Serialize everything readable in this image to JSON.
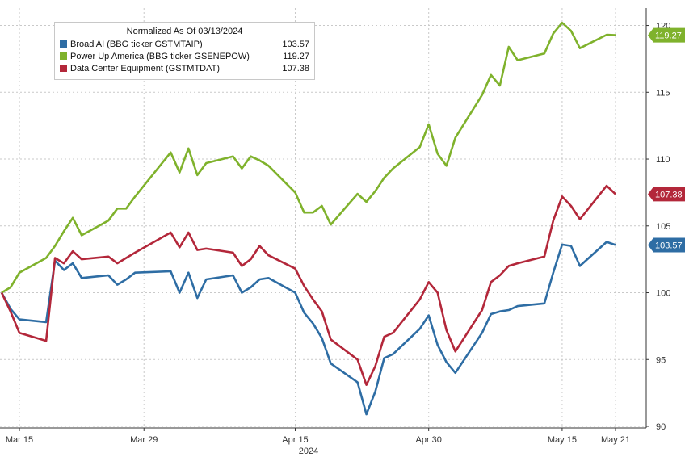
{
  "chart_data": {
    "type": "line",
    "legend_title": "Normalized As Of 03/13/2024",
    "x_ticks": [
      "Mar 15",
      "Mar 29",
      "Apr 15",
      "Apr 30",
      "May 15",
      "May 21"
    ],
    "x_year_label": "2024",
    "y_ticks": [
      "90",
      "95",
      "100",
      "105",
      "110",
      "115",
      "120"
    ],
    "ylim": [
      90,
      121
    ],
    "grid": true,
    "legend_position": "top-left",
    "y_axis_position": "right",
    "series": [
      {
        "name": "Broad AI (BBG ticker GSTMTAIP)",
        "value_label": "103.57",
        "tag": "103.57",
        "color": "#2e6da4",
        "x": [
          "2024-03-13",
          "2024-03-14",
          "2024-03-15",
          "2024-03-18",
          "2024-03-19",
          "2024-03-20",
          "2024-03-21",
          "2024-03-22",
          "2024-03-25",
          "2024-03-26",
          "2024-03-27",
          "2024-03-28",
          "2024-04-01",
          "2024-04-02",
          "2024-04-03",
          "2024-04-04",
          "2024-04-05",
          "2024-04-08",
          "2024-04-09",
          "2024-04-10",
          "2024-04-11",
          "2024-04-12",
          "2024-04-15",
          "2024-04-16",
          "2024-04-17",
          "2024-04-18",
          "2024-04-19",
          "2024-04-22",
          "2024-04-23",
          "2024-04-24",
          "2024-04-25",
          "2024-04-26",
          "2024-04-29",
          "2024-04-30",
          "2024-05-01",
          "2024-05-02",
          "2024-05-03",
          "2024-05-06",
          "2024-05-07",
          "2024-05-08",
          "2024-05-09",
          "2024-05-10",
          "2024-05-13",
          "2024-05-14",
          "2024-05-15",
          "2024-05-16",
          "2024-05-17",
          "2024-05-20",
          "2024-05-21"
        ],
        "y": [
          100.0,
          98.8,
          98.0,
          97.8,
          102.4,
          101.7,
          102.2,
          101.1,
          101.3,
          100.6,
          101.0,
          101.5,
          101.6,
          100.0,
          101.5,
          99.6,
          101.0,
          101.3,
          100.0,
          100.4,
          101.0,
          101.1,
          100.0,
          98.5,
          97.7,
          96.6,
          94.7,
          93.3,
          90.9,
          92.6,
          95.1,
          95.4,
          97.3,
          98.3,
          96.1,
          94.8,
          94.0,
          97.0,
          98.4,
          98.6,
          98.7,
          99.0,
          99.2,
          101.5,
          103.6,
          103.5,
          102.0,
          103.8,
          103.57
        ]
      },
      {
        "name": "Power Up America (BBG ticker GSENEPOW)",
        "value_label": "119.27",
        "tag": "119.27",
        "color": "#7fb22c",
        "x": [
          "2024-03-13",
          "2024-03-14",
          "2024-03-15",
          "2024-03-18",
          "2024-03-19",
          "2024-03-20",
          "2024-03-21",
          "2024-03-22",
          "2024-03-25",
          "2024-03-26",
          "2024-03-27",
          "2024-03-28",
          "2024-04-01",
          "2024-04-02",
          "2024-04-03",
          "2024-04-04",
          "2024-04-05",
          "2024-04-08",
          "2024-04-09",
          "2024-04-10",
          "2024-04-11",
          "2024-04-12",
          "2024-04-15",
          "2024-04-16",
          "2024-04-17",
          "2024-04-18",
          "2024-04-19",
          "2024-04-22",
          "2024-04-23",
          "2024-04-24",
          "2024-04-25",
          "2024-04-26",
          "2024-04-29",
          "2024-04-30",
          "2024-05-01",
          "2024-05-02",
          "2024-05-03",
          "2024-05-06",
          "2024-05-07",
          "2024-05-08",
          "2024-05-09",
          "2024-05-10",
          "2024-05-13",
          "2024-05-14",
          "2024-05-15",
          "2024-05-16",
          "2024-05-17",
          "2024-05-20",
          "2024-05-21"
        ],
        "y": [
          100.0,
          100.4,
          101.5,
          102.6,
          103.5,
          104.6,
          105.6,
          104.3,
          105.4,
          106.3,
          106.3,
          107.2,
          110.5,
          109.0,
          110.8,
          108.8,
          109.7,
          110.2,
          109.3,
          110.2,
          109.9,
          109.5,
          107.5,
          106.0,
          106.0,
          106.5,
          105.1,
          107.4,
          106.8,
          107.6,
          108.6,
          109.3,
          110.9,
          112.6,
          110.4,
          109.5,
          111.6,
          114.8,
          116.3,
          115.5,
          118.4,
          117.4,
          117.9,
          119.4,
          120.2,
          119.6,
          118.3,
          119.3,
          119.27
        ]
      },
      {
        "name": "Data Center Equipment (GSTMTDAT)",
        "value_label": "107.38",
        "tag": "107.38",
        "color": "#b3273a",
        "x": [
          "2024-03-13",
          "2024-03-14",
          "2024-03-15",
          "2024-03-18",
          "2024-03-19",
          "2024-03-20",
          "2024-03-21",
          "2024-03-22",
          "2024-03-25",
          "2024-03-26",
          "2024-03-27",
          "2024-03-28",
          "2024-04-01",
          "2024-04-02",
          "2024-04-03",
          "2024-04-04",
          "2024-04-05",
          "2024-04-08",
          "2024-04-09",
          "2024-04-10",
          "2024-04-11",
          "2024-04-12",
          "2024-04-15",
          "2024-04-16",
          "2024-04-17",
          "2024-04-18",
          "2024-04-19",
          "2024-04-22",
          "2024-04-23",
          "2024-04-24",
          "2024-04-25",
          "2024-04-26",
          "2024-04-29",
          "2024-04-30",
          "2024-05-01",
          "2024-05-02",
          "2024-05-03",
          "2024-05-06",
          "2024-05-07",
          "2024-05-08",
          "2024-05-09",
          "2024-05-10",
          "2024-05-13",
          "2024-05-14",
          "2024-05-15",
          "2024-05-16",
          "2024-05-17",
          "2024-05-20",
          "2024-05-21"
        ],
        "y": [
          100.0,
          98.6,
          97.0,
          96.4,
          102.6,
          102.2,
          103.1,
          102.5,
          102.7,
          102.2,
          102.6,
          103.0,
          104.5,
          103.4,
          104.5,
          103.2,
          103.3,
          103.0,
          102.0,
          102.5,
          103.5,
          102.8,
          101.8,
          100.5,
          99.5,
          98.6,
          96.5,
          95.0,
          93.1,
          94.5,
          96.7,
          97.0,
          99.5,
          100.8,
          100.0,
          97.2,
          95.6,
          98.7,
          100.8,
          101.3,
          102.0,
          102.2,
          102.7,
          105.4,
          107.2,
          106.5,
          105.5,
          108.0,
          107.38
        ]
      }
    ]
  }
}
